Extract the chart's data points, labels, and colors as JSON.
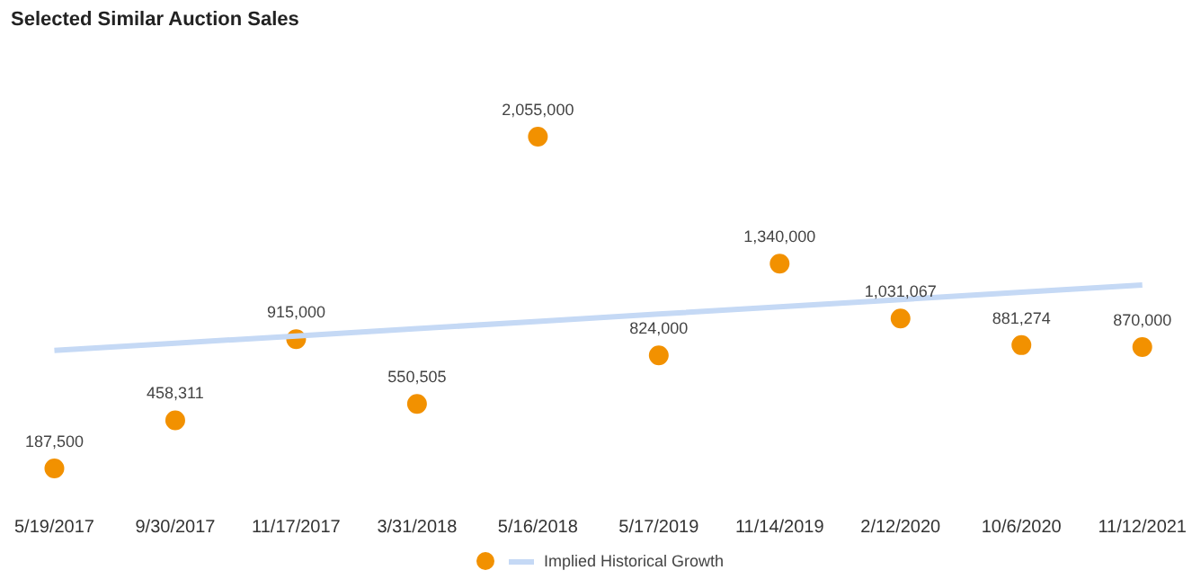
{
  "chart_data": {
    "type": "scatter",
    "title": "Selected Similar Auction Sales",
    "categories": [
      "5/19/2017",
      "9/30/2017",
      "11/17/2017",
      "3/31/2018",
      "5/16/2018",
      "5/17/2019",
      "11/14/2019",
      "2/12/2020",
      "10/6/2020",
      "11/12/2021"
    ],
    "series": [
      {
        "color": "#f29100",
        "values": [
          187500,
          458311,
          915000,
          550505,
          2055000,
          824000,
          1340000,
          1031067,
          881274,
          870000
        ],
        "value_labels": [
          "187,500",
          "458,311",
          "915,000",
          "550,505",
          "2,055,000",
          "824,000",
          "1,340,000",
          "1,031,067",
          "881,274",
          "870,000"
        ],
        "marker": "circle"
      },
      {
        "type": "line",
        "name": "Implied Historical Growth",
        "color": "#c5d9f5",
        "values": [
          851000,
          892000,
          933000,
          974000,
          1015000,
          1056000,
          1097000,
          1138000,
          1179000,
          1220000
        ],
        "marker": "none"
      }
    ],
    "legend": "bottom",
    "grid": false
  }
}
